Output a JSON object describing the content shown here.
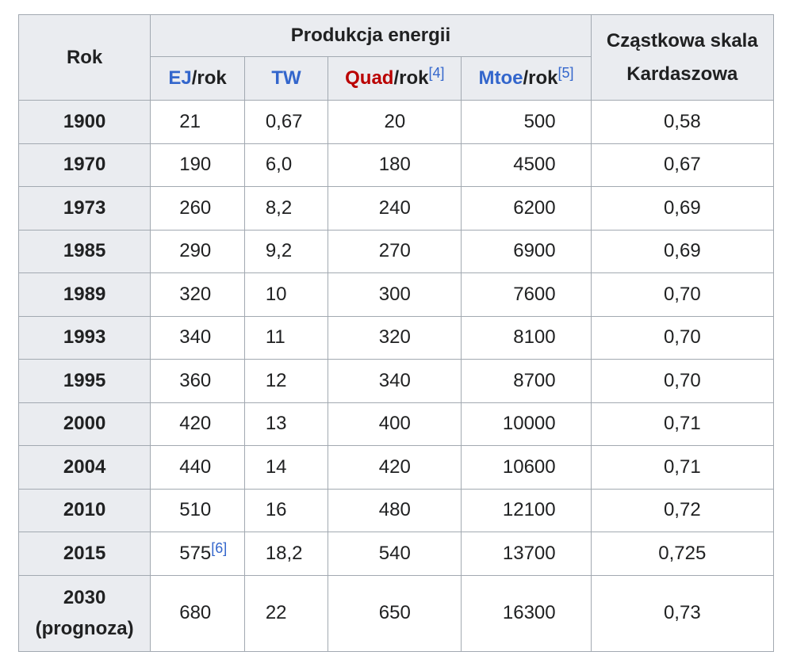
{
  "headers": {
    "rok": "Rok",
    "produkcja": "Produkcja energii",
    "kardaszow": "Cząstkowa skala Kardaszowa",
    "units": {
      "ej": {
        "main": "EJ",
        "rest": "/rok"
      },
      "tw": {
        "main": "TW"
      },
      "quad": {
        "main": "Quad",
        "rest": "/rok",
        "ref": "[4]"
      },
      "mtoe": {
        "main": "Mtoe",
        "rest": "/rok",
        "ref": "[5]"
      }
    }
  },
  "rows": [
    {
      "rok": "1900",
      "ej": "21",
      "tw": "0,67",
      "quad": "20",
      "mtoe": "500",
      "k": "0,58"
    },
    {
      "rok": "1970",
      "ej": "190",
      "tw": "6,0",
      "quad": "180",
      "mtoe": "4500",
      "k": "0,67"
    },
    {
      "rok": "1973",
      "ej": "260",
      "tw": "8,2",
      "quad": "240",
      "mtoe": "6200",
      "k": "0,69"
    },
    {
      "rok": "1985",
      "ej": "290",
      "tw": "9,2",
      "quad": "270",
      "mtoe": "6900",
      "k": "0,69"
    },
    {
      "rok": "1989",
      "ej": "320",
      "tw": "10",
      "quad": "300",
      "mtoe": "7600",
      "k": "0,70"
    },
    {
      "rok": "1993",
      "ej": "340",
      "tw": "11",
      "quad": "320",
      "mtoe": "8100",
      "k": "0,70"
    },
    {
      "rok": "1995",
      "ej": "360",
      "tw": "12",
      "quad": "340",
      "mtoe": "8700",
      "k": "0,70"
    },
    {
      "rok": "2000",
      "ej": "420",
      "tw": "13",
      "quad": "400",
      "mtoe": "10000",
      "k": "0,71"
    },
    {
      "rok": "2004",
      "ej": "440",
      "tw": "14",
      "quad": "420",
      "mtoe": "10600",
      "k": "0,71"
    },
    {
      "rok": "2010",
      "ej": "510",
      "tw": "16",
      "quad": "480",
      "mtoe": "12100",
      "k": "0,72"
    },
    {
      "rok": "2015",
      "ej": "575",
      "ej_ref": "[6]",
      "tw": "18,2",
      "quad": "540",
      "mtoe": "13700",
      "k": "0,725"
    }
  ],
  "last_row": {
    "rok": "2030",
    "rok_note": "(prognoza)",
    "ej": "680",
    "tw": "22",
    "quad": "650",
    "mtoe": "16300",
    "k": "0,73"
  },
  "colors": {
    "link": "#3366cc",
    "red_link": "#ba0000",
    "header_bg": "#eaecf0",
    "border": "#a2a9b1"
  }
}
